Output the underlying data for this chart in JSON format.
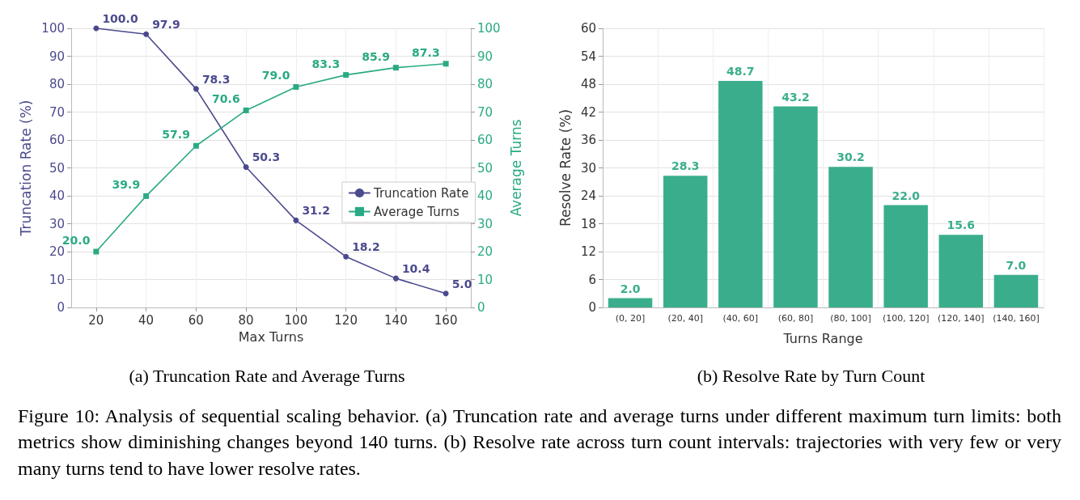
{
  "chart_data": [
    {
      "type": "line",
      "title": "(a) Truncation Rate and Average Turns",
      "xlabel": "Max Turns",
      "ylabel": "Truncation Rate (%)",
      "y2label": "Average Turns",
      "x": [
        20,
        40,
        60,
        80,
        100,
        120,
        140,
        160
      ],
      "xlim": [
        10,
        170
      ],
      "xticks": [
        20,
        40,
        60,
        80,
        100,
        120,
        140,
        160
      ],
      "ylim": [
        0,
        100
      ],
      "yticks": [
        0,
        10,
        20,
        30,
        40,
        50,
        60,
        70,
        80,
        90,
        100
      ],
      "y2lim": [
        0,
        100
      ],
      "y2ticks": [
        0,
        10,
        20,
        30,
        40,
        50,
        60,
        70,
        80,
        90,
        100
      ],
      "series": [
        {
          "name": "Truncation Rate",
          "color": "#4b4a8e",
          "marker": "circle",
          "values": [
            100.0,
            97.9,
            78.3,
            50.3,
            31.2,
            18.2,
            10.4,
            5.0
          ],
          "value_labels": [
            "100.0",
            "97.9",
            "78.3",
            "50.3",
            "31.2",
            "18.2",
            "10.4",
            "5.0"
          ]
        },
        {
          "name": "Average Turns",
          "color": "#2aaa84",
          "marker": "square",
          "axis": "y2",
          "values": [
            20.0,
            39.9,
            57.9,
            70.6,
            79.0,
            83.3,
            85.9,
            87.3
          ],
          "value_labels": [
            "20.0",
            "39.9",
            "57.9",
            "70.6",
            "79.0",
            "83.3",
            "85.9",
            "87.3"
          ]
        }
      ],
      "grid": true,
      "legend": "right",
      "line_style": "solid",
      "annotations": [
        "Figure 10:  Analysis of sequential scaling behavior.  (a) Truncation rate and average turns under different maximum turn limits: both metrics show diminishing changes beyond 140 turns. (b) Resolve rate across turn count intervals: trajectories with very few or very many turns tend to have lower resolve rates."
      ]
    },
    {
      "type": "bar",
      "title": "(b) Resolve Rate by Turn Count",
      "xlabel": "Turns Range",
      "ylabel": "Resolve Rate (%)",
      "categories": [
        "(0, 20]",
        "(20, 40]",
        "(40, 60]",
        "(60, 80]",
        "(80, 100]",
        "(100, 120]",
        "(120, 140]",
        "(140, 160]"
      ],
      "values": [
        2.0,
        28.3,
        48.7,
        43.2,
        30.2,
        22.0,
        15.6,
        7.0
      ],
      "value_labels": [
        "2.0",
        "28.3",
        "48.7",
        "43.2",
        "30.2",
        "22.0",
        "15.6",
        "7.0"
      ],
      "color": "#3aae8c",
      "ylim": [
        0,
        60
      ],
      "yticks": [
        0,
        6,
        12,
        18,
        24,
        30,
        36,
        42,
        48,
        54,
        60
      ],
      "grid": true
    }
  ]
}
